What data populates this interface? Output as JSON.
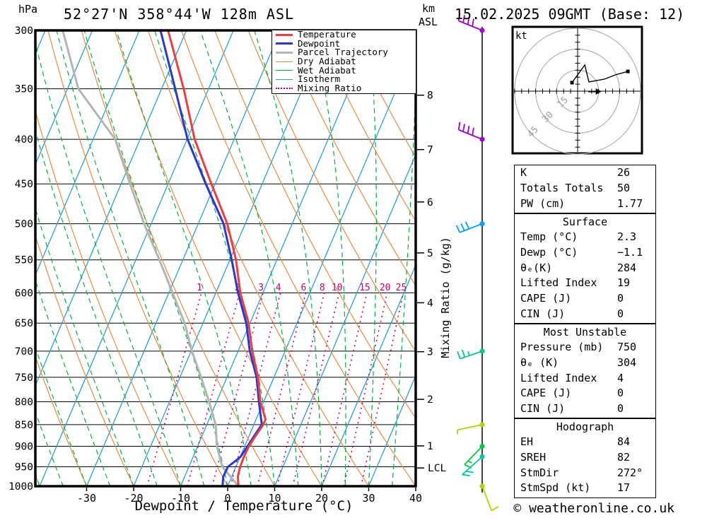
{
  "header": {
    "plot_title": "52°27'N 358°44'W 128m ASL",
    "date_title": "15.02.2025 09GMT (Base: 12)",
    "left_axis_unit": "hPa",
    "right_axis_unit_line1": "km",
    "right_axis_unit_line2": "ASL"
  },
  "legend": {
    "items": [
      {
        "label": "Temperature",
        "color": "#f03c3c",
        "style": "solid",
        "thickness": 3
      },
      {
        "label": "Dewpoint",
        "color": "#2838d8",
        "style": "solid",
        "thickness": 3
      },
      {
        "label": "Parcel Trajectory",
        "color": "#b4b4b4",
        "style": "solid",
        "thickness": 3
      },
      {
        "label": "Dry Adiabat",
        "color": "#e88c3c",
        "style": "solid",
        "thickness": 1
      },
      {
        "label": "Wet Adiabat",
        "color": "#00b43c",
        "style": "solid",
        "thickness": 1
      },
      {
        "label": "Isotherm",
        "color": "#28a0e0",
        "style": "solid",
        "thickness": 1
      },
      {
        "label": "Mixing Ratio",
        "color": "#d2006e",
        "style": "dotted",
        "thickness": 2
      }
    ]
  },
  "axes": {
    "pressure_ticks": [
      300,
      350,
      400,
      450,
      500,
      550,
      600,
      650,
      700,
      750,
      800,
      850,
      900,
      950,
      1000
    ],
    "pressure_scale": "log",
    "pressure_range_hPa": [
      300,
      1000
    ],
    "temperature_ticks": [
      -30,
      -20,
      -10,
      0,
      10,
      20,
      30,
      40
    ],
    "temperature_range_C": [
      -40,
      40
    ],
    "xlabel": "Dewpoint / Temperature (°C)",
    "right_axis_label": "Mixing Ratio (g/kg)",
    "km_levels": [
      {
        "km": 1,
        "p": 899
      },
      {
        "km": 2,
        "p": 795
      },
      {
        "km": 3,
        "p": 701
      },
      {
        "km": 4,
        "p": 616
      },
      {
        "km": 5,
        "p": 540
      },
      {
        "km": 6,
        "p": 472
      },
      {
        "km": 7,
        "p": 411
      },
      {
        "km": 8,
        "p": 356
      }
    ],
    "lcl": {
      "label": "LCL",
      "p": 953
    }
  },
  "chart_data": {
    "type": "line",
    "subtype": "skew-t-log-p sounding",
    "title": "52°27'N 358°44'W 128m ASL",
    "grid": "on",
    "series": [
      {
        "name": "Temperature",
        "color": "#f03c3c",
        "width": 3,
        "points_p_T": [
          [
            1000,
            2.3
          ],
          [
            975,
            1.3
          ],
          [
            950,
            0.9
          ],
          [
            925,
            0.8
          ],
          [
            900,
            0.9
          ],
          [
            875,
            1.4
          ],
          [
            850,
            2.0
          ],
          [
            838,
            2.0
          ],
          [
            800,
            -0.7
          ],
          [
            750,
            -3.4
          ],
          [
            700,
            -7.0
          ],
          [
            650,
            -10.3
          ],
          [
            600,
            -14.8
          ],
          [
            550,
            -18.7
          ],
          [
            500,
            -23.8
          ],
          [
            450,
            -30.8
          ],
          [
            400,
            -38.4
          ],
          [
            350,
            -45.3
          ],
          [
            300,
            -53.9
          ]
        ]
      },
      {
        "name": "Dewpoint",
        "color": "#2838d8",
        "width": 3,
        "points_p_T": [
          [
            1000,
            -1.1
          ],
          [
            975,
            -1.8
          ],
          [
            950,
            -1.7
          ],
          [
            935,
            -0.6
          ],
          [
            925,
            0.1
          ],
          [
            900,
            0.6
          ],
          [
            875,
            1.1
          ],
          [
            850,
            1.7
          ],
          [
            800,
            -1.0
          ],
          [
            750,
            -3.7
          ],
          [
            700,
            -7.5
          ],
          [
            650,
            -10.8
          ],
          [
            600,
            -15.3
          ],
          [
            550,
            -19.6
          ],
          [
            500,
            -24.6
          ],
          [
            450,
            -32.0
          ],
          [
            400,
            -39.9
          ],
          [
            350,
            -47.1
          ],
          [
            300,
            -55.5
          ]
        ]
      },
      {
        "name": "Parcel Trajectory",
        "color": "#b4b4b4",
        "width": 3,
        "points_p_T": [
          [
            1000,
            2.3
          ],
          [
            950,
            -2.9
          ],
          [
            900,
            -5.9
          ],
          [
            850,
            -8.1
          ],
          [
            800,
            -11.6
          ],
          [
            750,
            -15.5
          ],
          [
            700,
            -19.8
          ],
          [
            650,
            -23.9
          ],
          [
            600,
            -29.2
          ],
          [
            550,
            -35.0
          ],
          [
            500,
            -41.5
          ],
          [
            450,
            -48.1
          ],
          [
            400,
            -55.3
          ],
          [
            350,
            -67.7
          ],
          [
            300,
            -76.3
          ]
        ]
      }
    ],
    "background_lines": {
      "isotherms_C": {
        "color": "#28a0e0",
        "from": -100,
        "to": 40,
        "step": 10
      },
      "dry_adiabats_C": {
        "color": "#e88c3c",
        "from": -40,
        "to": 110,
        "step": 10
      },
      "wet_adiabats_C": {
        "color": "#00b43c",
        "from": -55,
        "to": 40,
        "step": 5
      },
      "mixing_ratio_g_kg": {
        "color": "#d2006e",
        "values": [
          1,
          2,
          3,
          4,
          6,
          8,
          10,
          15,
          20,
          25
        ],
        "label_pressure": 600
      }
    },
    "wind_barbs": [
      {
        "p": 300,
        "color": "#a000d2",
        "shaft_deg": 158,
        "len": 36,
        "full": 4,
        "half": 0,
        "tick_deg": 80
      },
      {
        "p": 400,
        "color": "#a000d2",
        "shaft_deg": 158,
        "len": 36,
        "full": 4,
        "half": 0,
        "tick_deg": 80
      },
      {
        "p": 500,
        "color": "#00a0ff",
        "shaft_deg": 201,
        "len": 34,
        "full": 3,
        "half": 0,
        "tick_deg": 115
      },
      {
        "p": 700,
        "color": "#00c88c",
        "shaft_deg": 199,
        "len": 33,
        "full": 2,
        "half": 1,
        "tick_deg": 110
      },
      {
        "p": 850,
        "color": "#b4d200",
        "shaft_deg": 192,
        "len": 36,
        "full": 0,
        "half": 1,
        "tick_deg": 275
      },
      {
        "p": 900,
        "color": "#00c83c",
        "shaft_deg": 226,
        "len": 36,
        "full": 1,
        "half": 1,
        "tick_deg": 335
      },
      {
        "p": 925,
        "color": "#00c8a0",
        "shaft_deg": 222,
        "len": 38,
        "full": 2,
        "half": 0,
        "tick_deg": 352
      },
      {
        "p": 1000,
        "color": "#b4d200",
        "shaft_deg": 291,
        "len": 37,
        "full": 1,
        "half": 0,
        "tick_deg": 30
      }
    ]
  },
  "hodograph": {
    "unit_label": "kt",
    "rings_kt": [
      15,
      30,
      45
    ],
    "ring_labels": [
      "15",
      "30",
      "45"
    ],
    "trace_u_v_kt": [
      [
        -4.0,
        6.1
      ],
      [
        5.1,
        18.7
      ],
      [
        8.1,
        6.6
      ],
      [
        19.2,
        8.6
      ],
      [
        26.8,
        11.6
      ],
      [
        35.9,
        14.1
      ]
    ],
    "storm_motion": {
      "u_kt": 17,
      "v_kt": 0,
      "dir_deg": 272,
      "spd_kt": 17
    }
  },
  "stats_panels": [
    {
      "title": "",
      "rows": [
        [
          "K",
          "26"
        ],
        [
          "Totals Totals",
          "50"
        ],
        [
          "PW (cm)",
          "1.77"
        ]
      ]
    },
    {
      "title": "Surface",
      "rows": [
        [
          "Temp (°C)",
          "2.3"
        ],
        [
          "Dewp (°C)",
          "−1.1"
        ],
        [
          "θₑ(K)",
          "284"
        ],
        [
          "Lifted Index",
          "19"
        ],
        [
          "CAPE (J)",
          "0"
        ],
        [
          "CIN (J)",
          "0"
        ]
      ]
    },
    {
      "title": "Most Unstable",
      "rows": [
        [
          "Pressure (mb)",
          "750"
        ],
        [
          "θₑ (K)",
          "304"
        ],
        [
          "Lifted Index",
          "4"
        ],
        [
          "CAPE (J)",
          "0"
        ],
        [
          "CIN (J)",
          "0"
        ]
      ]
    },
    {
      "title": "Hodograph",
      "rows": [
        [
          "EH",
          "84"
        ],
        [
          "SREH",
          "82"
        ],
        [
          "StmDir",
          "272°"
        ],
        [
          "StmSpd (kt)",
          "17"
        ]
      ]
    }
  ],
  "footer": {
    "copyright": "© weatheronline.co.uk"
  }
}
